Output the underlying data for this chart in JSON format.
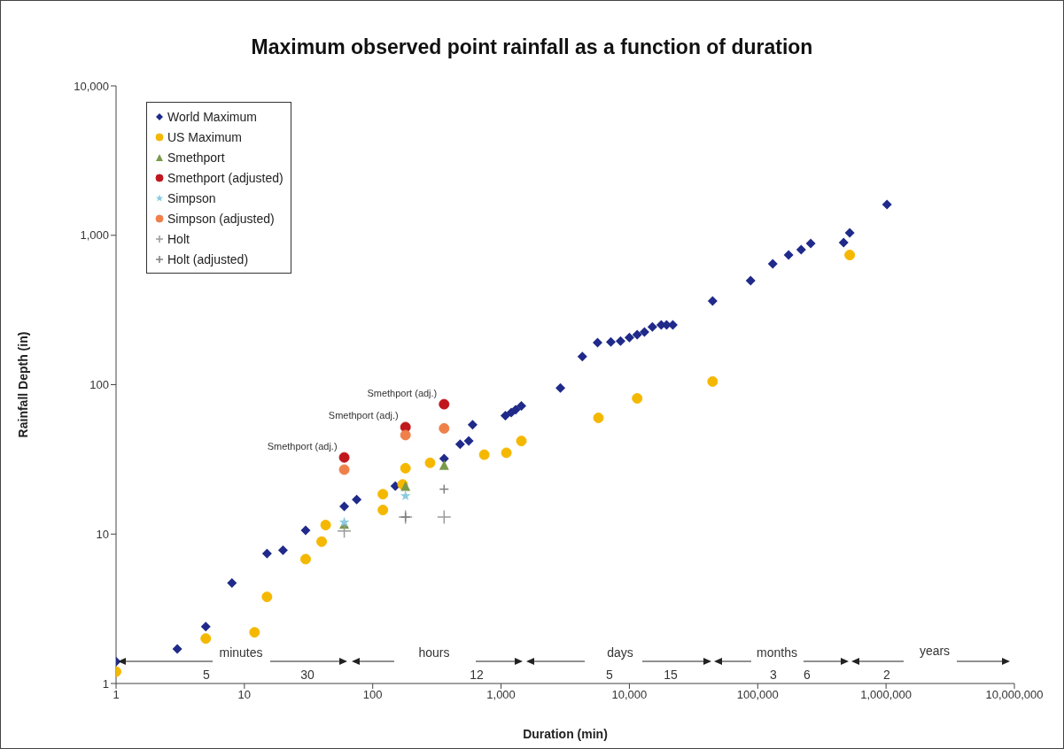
{
  "chart_data": {
    "type": "scatter",
    "title": "Maximum observed point rainfall as a function of duration",
    "xlabel": "Duration (min)",
    "ylabel": "Rainfall Depth (in)",
    "log": "xy",
    "grid": false,
    "legend": "top left",
    "xlim": [
      1,
      10000000
    ],
    "xticks": [
      1,
      10,
      100,
      {
        "value": 1000,
        "label": "1,000"
      },
      {
        "value": 10000,
        "label": "10,000"
      },
      {
        "value": 100000,
        "label": "100,000"
      },
      {
        "value": 1000000,
        "label": "1,000,000"
      },
      {
        "value": 10000000,
        "label": "10,000,000"
      }
    ],
    "ylim": [
      1,
      10000
    ],
    "yticks": [
      1,
      10,
      100,
      {
        "value": 1000,
        "label": "1,000"
      },
      {
        "value": 10000,
        "label": "10,000"
      }
    ],
    "series": [
      {
        "name": "World Maximum",
        "color": "#1f2a8a",
        "marker": "diamond",
        "x": [
          1,
          3,
          5,
          8,
          15,
          20,
          30,
          60,
          75,
          150,
          360,
          480,
          560,
          600,
          1080,
          1200,
          1300,
          1440,
          2900,
          4300,
          5650,
          7170,
          8530,
          10000,
          11500,
          13100,
          15100,
          17700,
          19500,
          21800,
          44500,
          88000,
          131000,
          174000,
          218000,
          259000,
          467000,
          521000,
          1017000
        ],
        "values": [
          1.4,
          1.7,
          2.4,
          4.7,
          7.4,
          7.8,
          10.6,
          15.3,
          17,
          21,
          32,
          40,
          42,
          54,
          62,
          65,
          68,
          72,
          95,
          154,
          191,
          193,
          196,
          207,
          216,
          225,
          244,
          251,
          251,
          251,
          363,
          497,
          644,
          738,
          801,
          881,
          894,
          1038,
          1607
        ]
      },
      {
        "name": "US Maximum",
        "color": "#f5b800",
        "marker": "circle",
        "x": [
          1,
          5,
          12,
          15,
          30,
          40,
          43,
          120,
          120,
          171,
          180,
          280,
          740,
          1100,
          1440,
          5740,
          11500,
          44500,
          521000
        ],
        "values": [
          1.2,
          2,
          2.2,
          3.8,
          6.8,
          8.9,
          11.5,
          18.5,
          14.5,
          21.5,
          27.6,
          30,
          34,
          35,
          42,
          60,
          81,
          105,
          738
        ]
      },
      {
        "name": "Smethport",
        "color": "#7a9a4a",
        "marker": "triangle",
        "x": [
          60,
          180,
          360
        ],
        "values": [
          11.7,
          21,
          29
        ]
      },
      {
        "name": "Smethport (adjusted)",
        "color": "#c0161c",
        "marker": "circle",
        "x": [
          60,
          180,
          360
        ],
        "values": [
          32.6,
          52,
          74
        ]
      },
      {
        "name": "Simpson",
        "color": "#8ccbe0",
        "marker": "star",
        "x": [
          60,
          180
        ],
        "values": [
          12,
          18
        ]
      },
      {
        "name": "Simpson (adjusted)",
        "color": "#f0804a",
        "marker": "circle",
        "x": [
          60,
          180,
          360
        ],
        "values": [
          27,
          46,
          51
        ]
      },
      {
        "name": "Holt",
        "color": "#9a9a9a",
        "marker": "cross",
        "x": [
          60,
          180,
          360
        ],
        "values": [
          10.5,
          13,
          13
        ]
      },
      {
        "name": "Holt (adjusted)",
        "color": "#7f7f7f",
        "marker": "cross",
        "x": [
          180,
          360
        ],
        "values": [
          13,
          20
        ]
      }
    ],
    "annotations": [
      {
        "text": "Smethport (adj.)",
        "x": 60,
        "y": 32.6
      },
      {
        "text": "Smethport (adj.)",
        "x": 180,
        "y": 52
      },
      {
        "text": "Smethport (adj.)",
        "x": 360,
        "y": 74
      },
      "minutes",
      "hours",
      "days",
      "months",
      "years",
      "5",
      "30",
      "12",
      "5",
      "15",
      "3",
      "6",
      "2"
    ]
  }
}
